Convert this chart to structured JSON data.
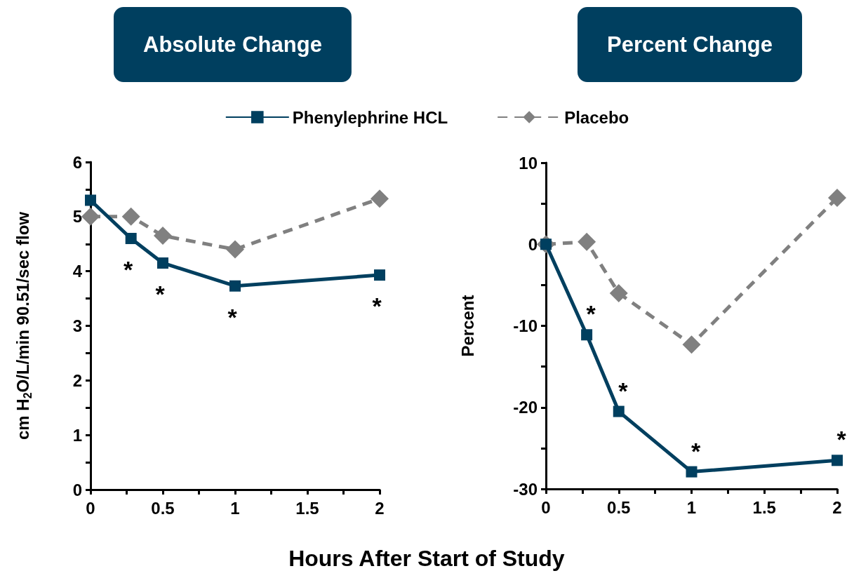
{
  "chart_data": [
    {
      "type": "line",
      "title": "Absolute Change",
      "xlabel": "Hours After Start of Study",
      "ylabel": "cm H$_{2}$O/L/min 90.51/sec flow",
      "x": [
        0,
        0.28,
        0.5,
        1,
        2
      ],
      "series": [
        {
          "name": "Phenylephrine HCL",
          "color": "#003f5f",
          "marker": "square",
          "line_style": "solid",
          "values": [
            5.3,
            4.6,
            4.15,
            3.73,
            3.93
          ]
        },
        {
          "name": "Placebo",
          "color": "#808080",
          "marker": "diamond",
          "line_style": "dashed",
          "values": [
            5.0,
            5.0,
            4.65,
            4.4,
            5.33
          ]
        }
      ],
      "xlim": [
        0,
        2
      ],
      "xticks": [
        0,
        {
          "value": 0.25,
          "label": null
        },
        0.5,
        {
          "value": 0.75,
          "label": null
        },
        1,
        {
          "value": 1.25,
          "label": null
        },
        1.5,
        {
          "value": 1.75,
          "label": null
        },
        2
      ],
      "ylim": [
        0,
        6
      ],
      "yticks": [
        0,
        {
          "value": 0.5,
          "label": null
        },
        1,
        {
          "value": 1.5,
          "label": null
        },
        2,
        {
          "value": 2.5,
          "label": null
        },
        3,
        {
          "value": 3.5,
          "label": null
        },
        4,
        {
          "value": 4.5,
          "label": null
        },
        5,
        {
          "value": 5.5,
          "label": null
        },
        6
      ],
      "annotations": [
        {
          "text": "*",
          "x": 0.28,
          "y": 4.6
        },
        {
          "text": "*",
          "x": 0.5,
          "y": 4.15
        },
        {
          "text": "*",
          "x": 1,
          "y": 3.73
        },
        {
          "text": "*",
          "x": 2,
          "y": 3.93
        }
      ],
      "grid": false,
      "legend": "top"
    },
    {
      "type": "line",
      "title": "Percent Change",
      "ylabel": "Percent",
      "x": [
        0,
        0.28,
        0.5,
        1,
        2
      ],
      "series": [
        {
          "color": "#003f5f",
          "marker": "square",
          "line_style": "solid",
          "values": [
            0,
            -11.1,
            -20.5,
            -27.9,
            -26.5
          ]
        },
        {
          "color": "#808080",
          "marker": "diamond",
          "line_style": "dashed",
          "values": [
            0,
            0.3,
            -6,
            -12.3,
            5.7
          ]
        }
      ],
      "xlim": [
        0,
        2
      ],
      "xticks": [
        0,
        {
          "value": 0.25,
          "label": null
        },
        0.5,
        {
          "value": 0.75,
          "label": null
        },
        1,
        {
          "value": 1.25,
          "label": null
        },
        1.5,
        {
          "value": 1.75,
          "label": null
        },
        2
      ],
      "ylim": [
        -30,
        10
      ],
      "yticks": [
        -30,
        {
          "value": -25,
          "label": null
        },
        -20,
        {
          "value": -15,
          "label": null
        },
        -10,
        {
          "value": -5,
          "label": null
        },
        0,
        {
          "value": 5,
          "label": null
        },
        10
      ],
      "annotations": [
        {
          "text": "*",
          "x": 0.28,
          "y": -11.1
        },
        {
          "text": "*",
          "x": 0.5,
          "y": -20.5
        },
        {
          "text": "*",
          "x": 1,
          "y": -27.9
        },
        {
          "text": "*",
          "x": 2,
          "y": -26.5
        }
      ],
      "grid": false,
      "legend": false
    }
  ]
}
